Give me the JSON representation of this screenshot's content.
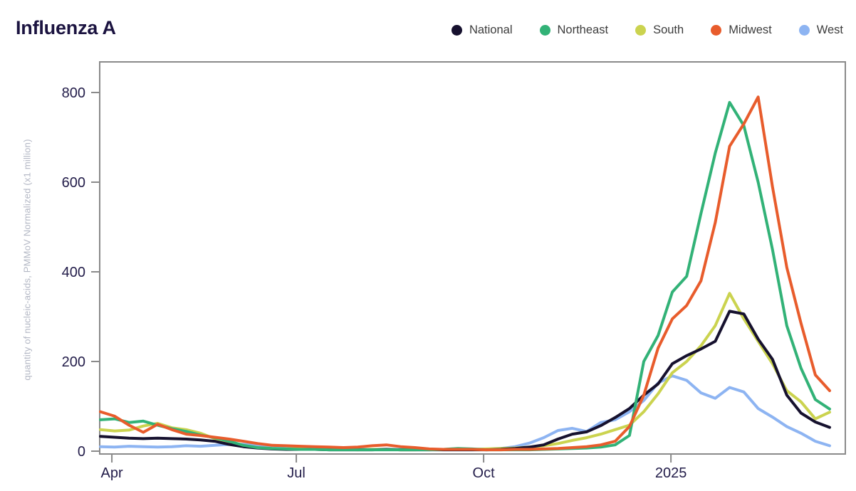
{
  "title": "Influenza A",
  "colors": {
    "background": "#ffffff",
    "title_text": "#1b1340",
    "legend_text": "#3c3c3c",
    "axis": "#8a8a8a",
    "tick_label": "#221c49",
    "y_axis_label_text": "#b3b7c4"
  },
  "chart_data": {
    "type": "line",
    "title": "Influenza A",
    "xlabel": "",
    "ylabel": "quantity of nucleic-acids, PMMoV Normalized (x1 million)",
    "ylim": [
      0,
      870
    ],
    "yticks": [
      0,
      200,
      400,
      600,
      800
    ],
    "xticks": [
      {
        "label": "Apr",
        "i": 0.8
      },
      {
        "label": "Jul",
        "i": 13.7
      },
      {
        "label": "Oct",
        "i": 26.8
      },
      {
        "label": "2025",
        "i": 39.9
      }
    ],
    "grid": false,
    "legend_position": "top-right",
    "x_points": 52,
    "series": [
      {
        "name": "National",
        "color": "#16112e",
        "values": [
          33,
          31,
          29,
          28,
          29,
          28,
          27,
          25,
          22,
          15,
          10,
          7,
          5,
          4,
          4,
          4,
          3,
          3,
          3,
          3,
          4,
          3,
          3,
          3,
          3,
          3,
          3,
          3,
          4,
          6,
          9,
          14,
          27,
          38,
          43,
          57,
          75,
          95,
          125,
          150,
          195,
          213,
          228,
          245,
          312,
          306,
          250,
          205,
          125,
          85,
          65,
          53
        ]
      },
      {
        "name": "Northeast",
        "color": "#32b277",
        "values": [
          70,
          72,
          64,
          67,
          58,
          50,
          44,
          36,
          30,
          22,
          13,
          8,
          6,
          5,
          4,
          4,
          3,
          3,
          3,
          3,
          3,
          3,
          3,
          3,
          4,
          6,
          5,
          3,
          3,
          3,
          3,
          4,
          5,
          6,
          7,
          9,
          14,
          35,
          200,
          258,
          355,
          390,
          530,
          665,
          778,
          726,
          600,
          450,
          280,
          185,
          115,
          94
        ]
      },
      {
        "name": "South",
        "color": "#cbd34f",
        "values": [
          48,
          45,
          47,
          56,
          62,
          52,
          48,
          40,
          28,
          18,
          12,
          8,
          6,
          5,
          6,
          5,
          4,
          4,
          3,
          4,
          4,
          3,
          3,
          4,
          4,
          5,
          4,
          5,
          6,
          7,
          9,
          12,
          17,
          24,
          30,
          38,
          48,
          58,
          88,
          128,
          175,
          200,
          235,
          280,
          352,
          295,
          245,
          195,
          135,
          110,
          72,
          87
        ]
      },
      {
        "name": "Midwest",
        "color": "#e85c2c",
        "values": [
          88,
          78,
          58,
          42,
          60,
          48,
          38,
          35,
          31,
          27,
          22,
          17,
          13,
          12,
          11,
          10,
          9,
          8,
          9,
          12,
          14,
          10,
          8,
          5,
          4,
          4,
          4,
          3,
          3,
          4,
          4,
          5,
          6,
          8,
          10,
          14,
          22,
          55,
          125,
          230,
          295,
          325,
          380,
          510,
          680,
          730,
          790,
          590,
          410,
          285,
          170,
          135
        ]
      },
      {
        "name": "West",
        "color": "#8db4f2",
        "values": [
          10,
          9,
          11,
          10,
          9,
          10,
          12,
          11,
          13,
          15,
          15,
          12,
          8,
          6,
          5,
          5,
          4,
          4,
          4,
          4,
          4,
          4,
          4,
          4,
          3,
          3,
          3,
          4,
          6,
          10,
          18,
          30,
          46,
          51,
          44,
          64,
          70,
          88,
          113,
          152,
          168,
          158,
          130,
          118,
          142,
          132,
          95,
          76,
          55,
          40,
          22,
          12
        ]
      }
    ]
  }
}
